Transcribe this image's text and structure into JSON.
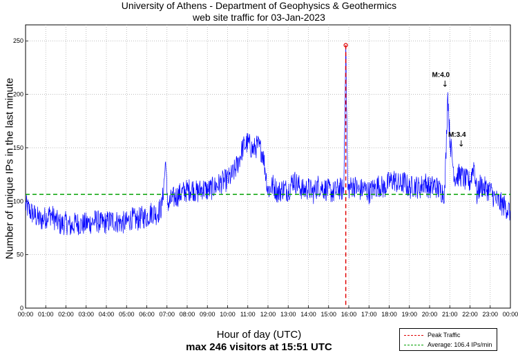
{
  "title": {
    "line1": "University of Athens - Department of Geophysics & Geothermics",
    "line2": "web site traffic for 03-Jan-2023"
  },
  "chart_data": {
    "type": "line",
    "ylabel": "Number of unique IPs in the last minute",
    "xlabel": "Hour of day (UTC)",
    "subtitle": "max 246 visitors at 15:51 UTC",
    "ylim": [
      0,
      265
    ],
    "xlim_hours": [
      0,
      24
    ],
    "yticks": [
      0,
      50,
      100,
      150,
      200,
      250
    ],
    "xtick_labels": [
      "00:00",
      "01:00",
      "02:00",
      "03:00",
      "04:00",
      "05:00",
      "06:00",
      "07:00",
      "08:00",
      "09:00",
      "10:00",
      "11:00",
      "12:00",
      "13:00",
      "14:00",
      "15:00",
      "16:00",
      "17:00",
      "18:00",
      "19:00",
      "20:00",
      "21:00",
      "22:00",
      "23:00",
      "00:00"
    ],
    "grid": true,
    "series": [
      {
        "name": "traffic",
        "color": "#0000ff",
        "x_hours": [
          0,
          0.25,
          0.5,
          0.75,
          1.0,
          1.25,
          1.5,
          1.75,
          2.0,
          2.25,
          2.5,
          2.75,
          3.0,
          3.25,
          3.5,
          3.75,
          4.0,
          4.25,
          4.5,
          4.75,
          5.0,
          5.25,
          5.5,
          5.75,
          6.0,
          6.25,
          6.5,
          6.75,
          6.95,
          7.0,
          7.1,
          7.25,
          7.5,
          7.75,
          8.0,
          8.25,
          8.5,
          8.75,
          9.0,
          9.25,
          9.5,
          9.75,
          10.0,
          10.25,
          10.5,
          10.75,
          11.0,
          11.25,
          11.5,
          11.75,
          12.0,
          12.25,
          12.5,
          12.75,
          13.0,
          13.25,
          13.5,
          13.75,
          14.0,
          14.25,
          14.5,
          14.75,
          15.0,
          15.25,
          15.5,
          15.75,
          15.85,
          15.95,
          16.0,
          16.25,
          16.5,
          16.75,
          17.0,
          17.25,
          17.5,
          17.75,
          18.0,
          18.25,
          18.5,
          18.75,
          19.0,
          19.25,
          19.5,
          19.75,
          20.0,
          20.25,
          20.5,
          20.75,
          20.9,
          21.0,
          21.15,
          21.25,
          21.5,
          21.75,
          22.0,
          22.2,
          22.35,
          22.5,
          22.75,
          23.0,
          23.25,
          23.5,
          23.75,
          24.0
        ],
        "values": [
          96,
          90,
          86,
          82,
          85,
          88,
          82,
          78,
          80,
          76,
          80,
          78,
          79,
          80,
          82,
          79,
          80,
          82,
          81,
          80,
          80,
          84,
          82,
          85,
          85,
          90,
          88,
          95,
          140,
          100,
          98,
          102,
          105,
          108,
          110,
          112,
          108,
          112,
          110,
          112,
          115,
          118,
          120,
          125,
          135,
          150,
          155,
          148,
          152,
          145,
          110,
          115,
          108,
          112,
          110,
          120,
          115,
          110,
          112,
          108,
          115,
          112,
          110,
          108,
          112,
          110,
          246,
          110,
          112,
          115,
          110,
          112,
          108,
          112,
          115,
          112,
          118,
          120,
          115,
          118,
          112,
          115,
          112,
          118,
          112,
          115,
          110,
          108,
          202,
          160,
          135,
          122,
          125,
          120,
          118,
          135,
          105,
          115,
          112,
          110,
          102,
          98,
          95,
          90
        ]
      }
    ],
    "peak": {
      "label": "Peak Traffic",
      "hour": 15.85,
      "value": 246,
      "color": "#e00000"
    },
    "average": {
      "label": "Average: 106.4 IPs/min",
      "value": 106.4,
      "color": "#00a000"
    },
    "annotations": [
      {
        "text": "M:4.0",
        "arrow": "↓",
        "hour": 20.9,
        "value": 202
      },
      {
        "text": "M:3.4",
        "arrow": "↓",
        "hour": 21.7,
        "value": 146
      }
    ]
  }
}
